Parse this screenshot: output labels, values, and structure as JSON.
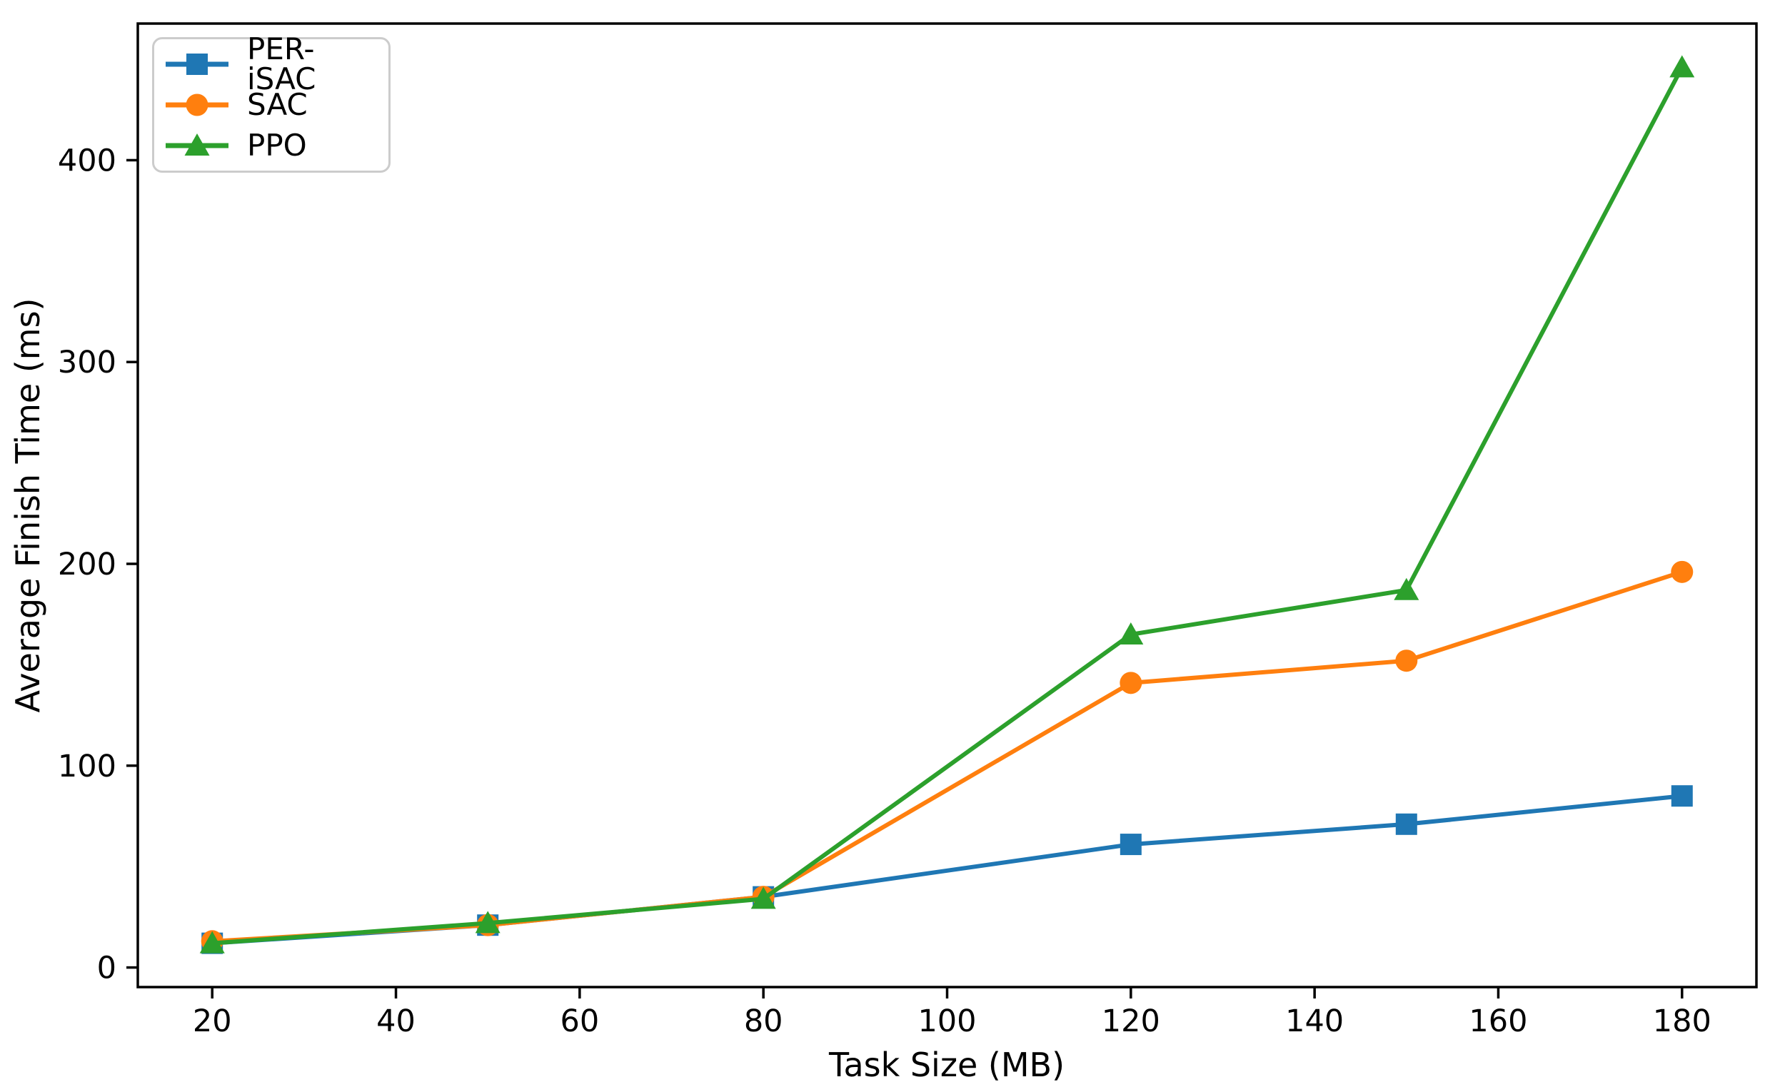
{
  "figure": {
    "background": "#ffffff",
    "text_color": "#000000",
    "spine_color": "#000000",
    "legend_border_color": "#cccccc"
  },
  "chart_data": {
    "type": "line",
    "title": "",
    "xlabel": "Task Size (MB)",
    "ylabel": "Average Finish Time (ms)",
    "x": [
      20,
      50,
      80,
      120,
      150,
      180
    ],
    "x_ticks": [
      20,
      40,
      60,
      80,
      100,
      120,
      140,
      160,
      180
    ],
    "y_ticks": [
      0,
      100,
      200,
      300,
      400
    ],
    "xlim": [
      11.9,
      188.1
    ],
    "ylim": [
      -9.7,
      467.7
    ],
    "grid": false,
    "legend_position": "upper-left",
    "series": [
      {
        "name": "PER-iSAC",
        "marker": "square",
        "color": "#1f77b4",
        "values": [
          12,
          21,
          35,
          61,
          71,
          85
        ]
      },
      {
        "name": "SAC",
        "marker": "circle",
        "color": "#ff7f0e",
        "values": [
          13,
          21,
          35,
          141,
          152,
          196
        ]
      },
      {
        "name": "PPO",
        "marker": "triangle",
        "color": "#2ca02c",
        "values": [
          12,
          22,
          34,
          165,
          187,
          446
        ]
      }
    ]
  }
}
